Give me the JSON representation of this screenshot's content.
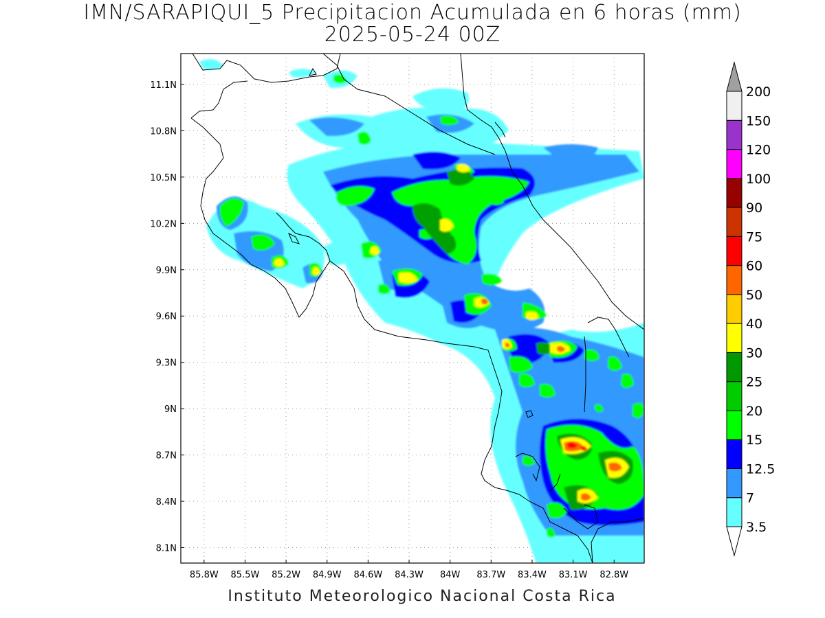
{
  "title": {
    "line1": "IMN/SARAPIQUI_5 Precipitacion Acumulada en 6 horas (mm)",
    "line2": "2025-05-24 00Z"
  },
  "footer": "Instituto Meteorologico Nacional Costa Rica",
  "map": {
    "lon_range": [
      -85.97,
      -82.58
    ],
    "lat_range": [
      8.0,
      11.3
    ],
    "x_ticks": [
      "85.8W",
      "85.5W",
      "85.2W",
      "84.9W",
      "84.6W",
      "84.3W",
      "84W",
      "83.7W",
      "83.4W",
      "83.1W",
      "82.8W"
    ],
    "y_ticks": [
      "8.1N",
      "8.4N",
      "8.7N",
      "9N",
      "9.3N",
      "9.6N",
      "9.9N",
      "10.2N",
      "10.5N",
      "10.8N",
      "11.1N"
    ],
    "grid": "dotted"
  },
  "colorbar": {
    "levels": [
      "3.5",
      "7",
      "12.5",
      "15",
      "20",
      "25",
      "30",
      "40",
      "50",
      "60",
      "75",
      "90",
      "100",
      "120",
      "150",
      "200"
    ],
    "colors": [
      "#66ffff",
      "#3399ff",
      "#0000ff",
      "#00ff00",
      "#00cc00",
      "#009900",
      "#ffff00",
      "#ffcc00",
      "#ff6600",
      "#ff0000",
      "#cc3300",
      "#990000",
      "#ff00ff",
      "#9933cc",
      "#f0f0f0"
    ],
    "under_color": "#ffffff",
    "over_color": "#a0a0a0"
  }
}
